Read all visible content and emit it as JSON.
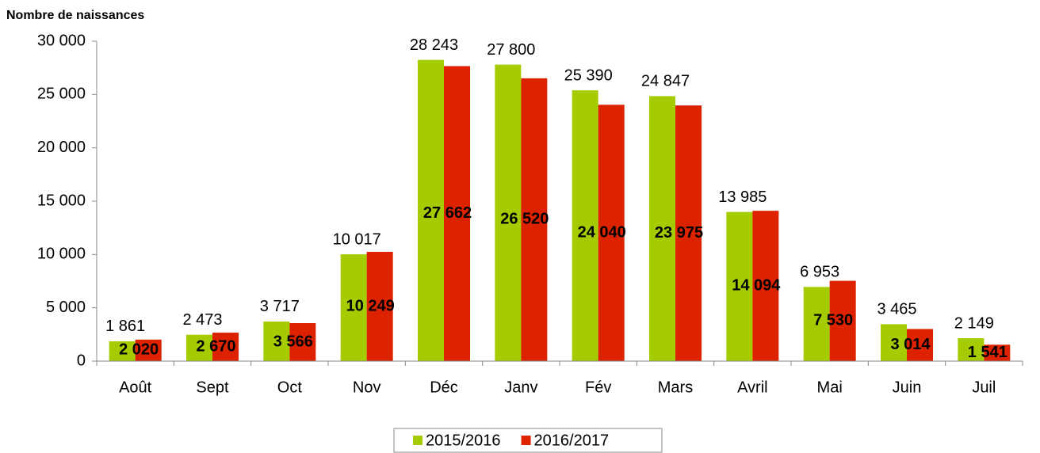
{
  "chart_data": {
    "type": "bar",
    "title": "Nombre de naissances",
    "categories": [
      "Août",
      "Sept",
      "Oct",
      "Nov",
      "Déc",
      "Janv",
      "Fév",
      "Mars",
      "Avril",
      "Mai",
      "Juin",
      "Juil"
    ],
    "series": [
      {
        "name": "2015/2016",
        "color": "#a4cc00",
        "values": [
          1861,
          2473,
          3717,
          10017,
          28243,
          27800,
          25390,
          24847,
          13985,
          6953,
          3465,
          2149
        ],
        "value_labels": [
          "1 861",
          "2 473",
          "3 717",
          "10 017",
          "28 243",
          "27 800",
          "25 390",
          "24 847",
          "13 985",
          "6 953",
          "3 465",
          "2 149"
        ]
      },
      {
        "name": "2016/2017",
        "color": "#dd2200",
        "values": [
          2020,
          2670,
          3566,
          10249,
          27662,
          26520,
          24040,
          23975,
          14094,
          7530,
          3014,
          1541
        ],
        "value_labels": [
          "2 020",
          "2 670",
          "3 566",
          "10 249",
          "27 662",
          "26 520",
          "24 040",
          "23 975",
          "14 094",
          "7 530",
          "3 014",
          "1 541"
        ]
      }
    ],
    "ylim": [
      0,
      30000
    ],
    "yticks": [
      0,
      {
        "value": 5000,
        "label": "5 000"
      },
      {
        "value": 10000,
        "label": "10 000"
      },
      {
        "value": 15000,
        "label": "15 000"
      },
      {
        "value": 20000,
        "label": "20 000"
      },
      {
        "value": 25000,
        "label": "25 000"
      },
      {
        "value": 30000,
        "label": "30 000"
      }
    ],
    "legend": "bottom"
  }
}
